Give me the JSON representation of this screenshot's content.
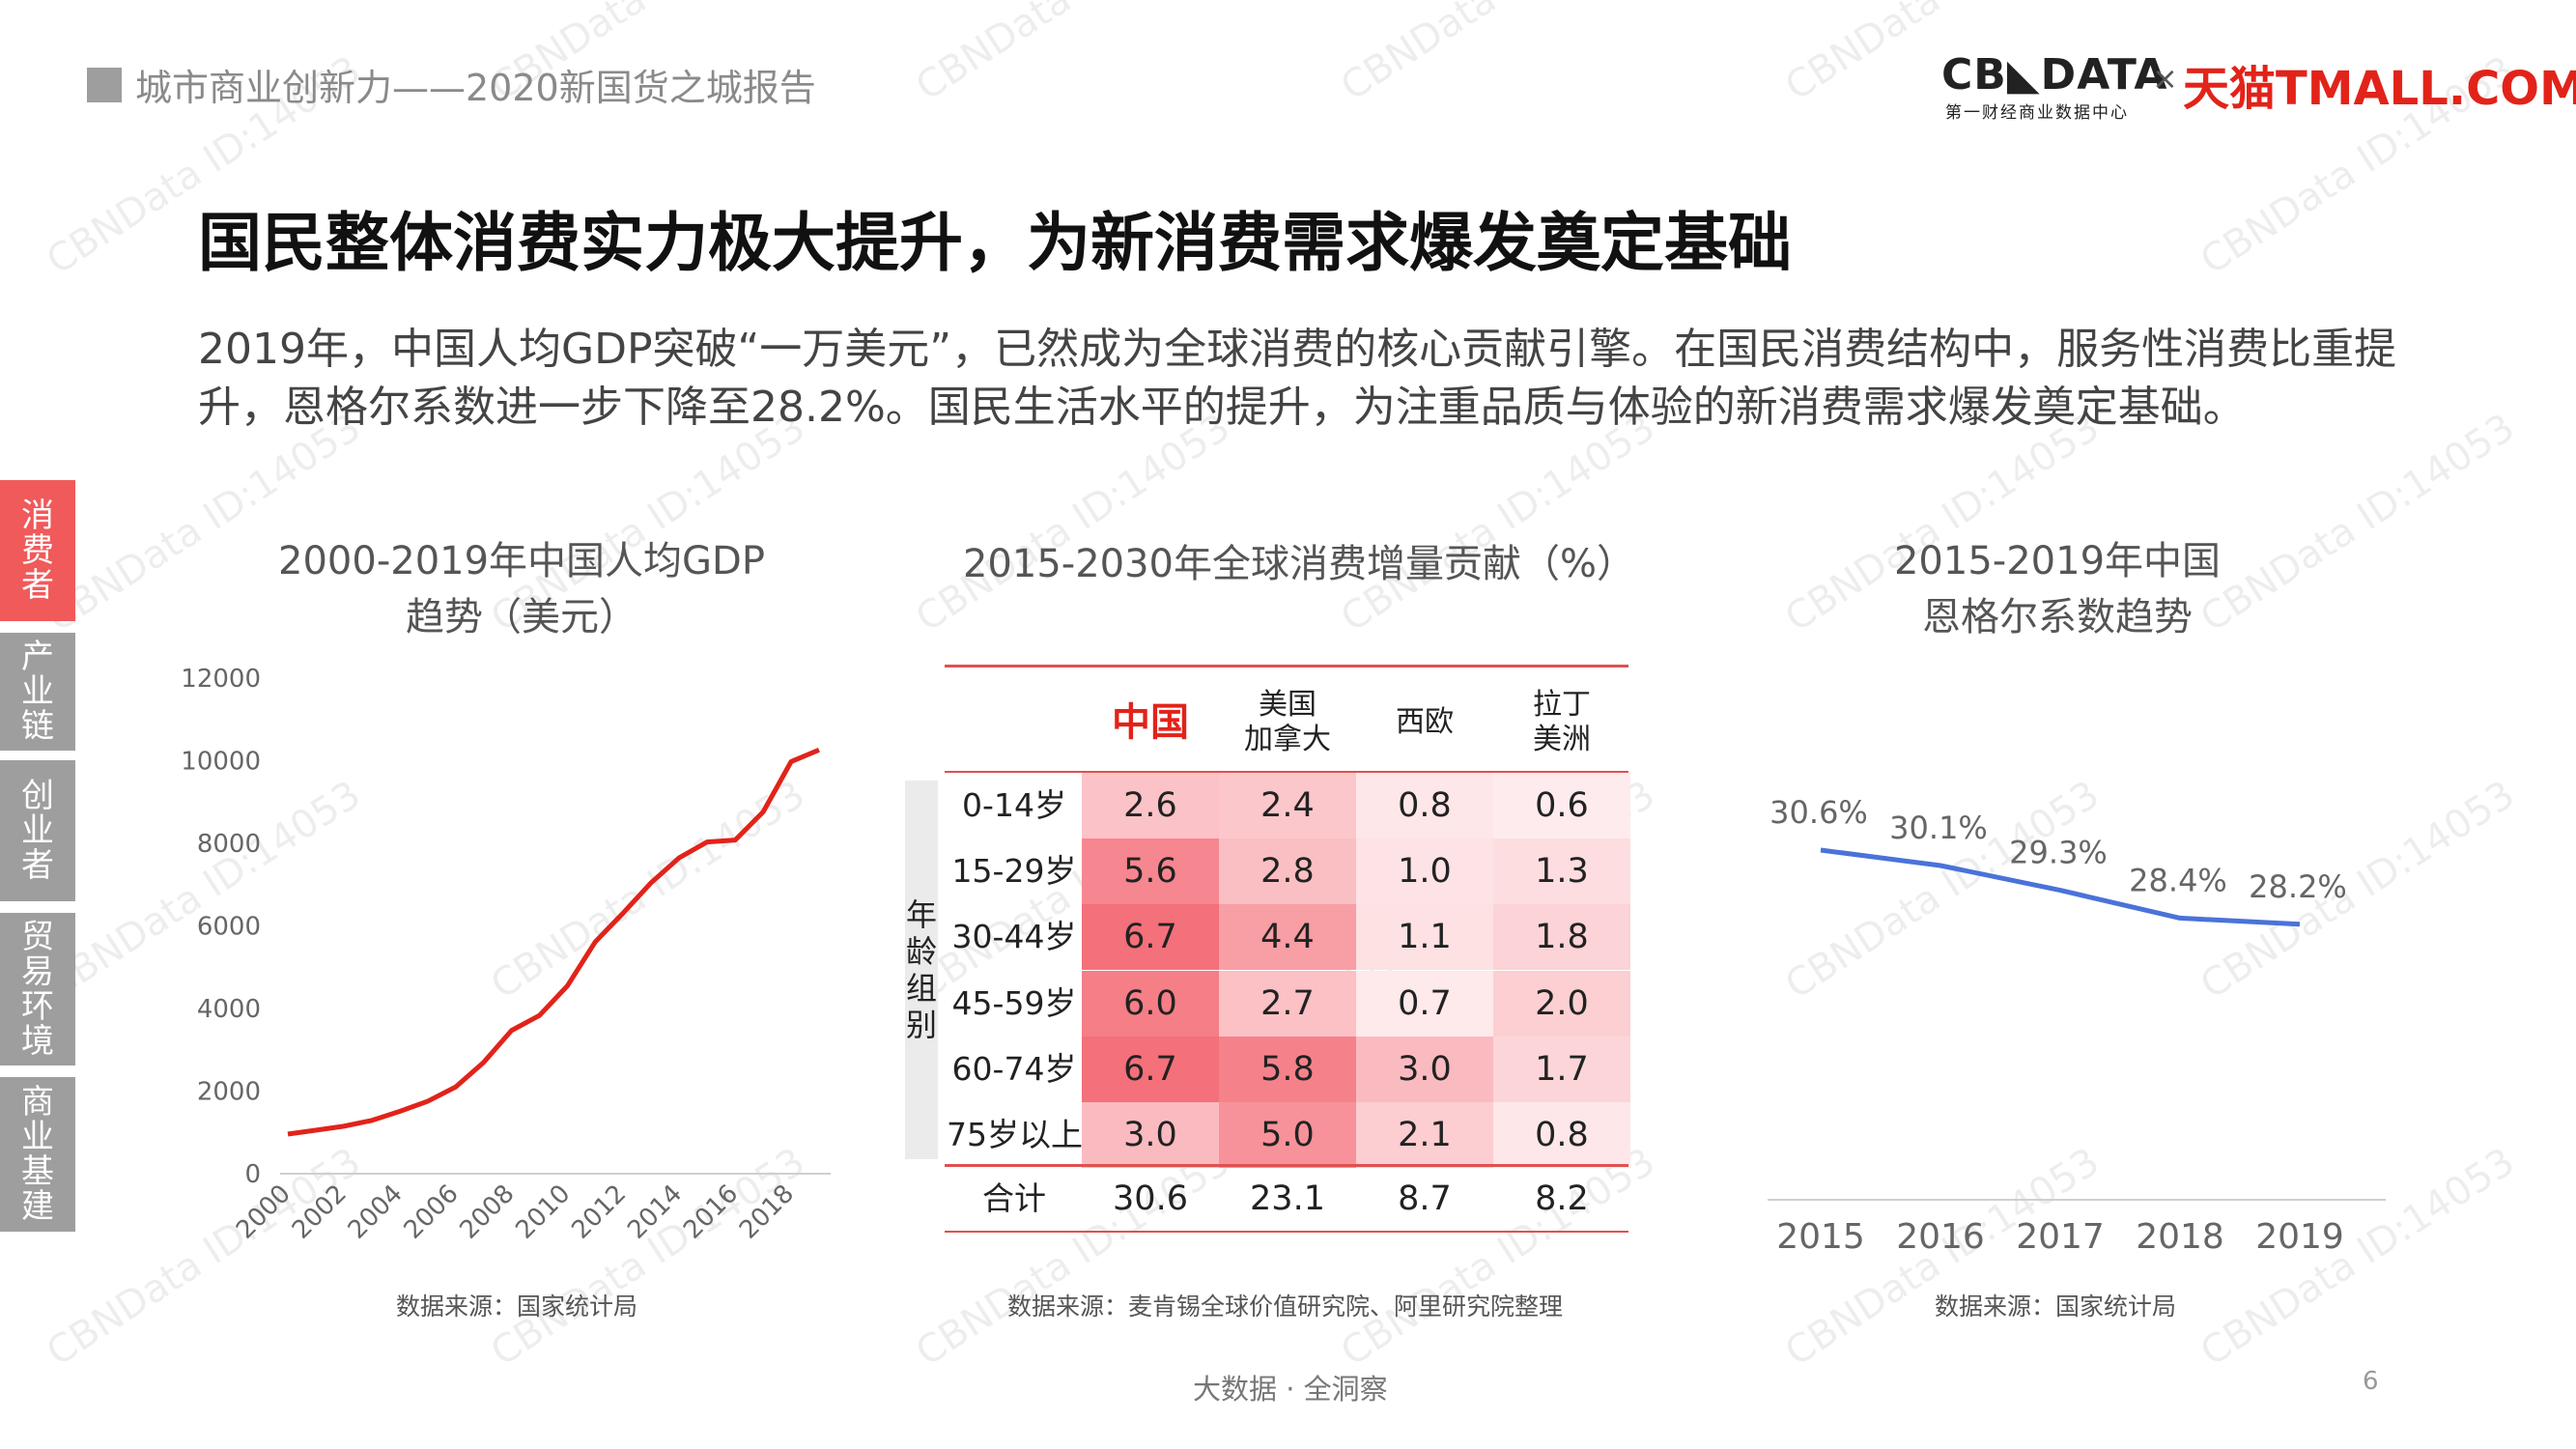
{
  "header": {
    "report_title": "城市商业创新力——2020新国货之城报告",
    "logo_cbn": "CB◣DATA",
    "logo_cbn_sub": "第一财经商业数据中心",
    "logo_x": "×",
    "logo_tmall": "天猫TMALL.COM"
  },
  "main_title": "国民整体消费实力极大提升，为新消费需求爆发奠定基础",
  "intro_text": "2019年，中国人均GDP突破“一万美元”，已然成为全球消费的核心贡献引擎。在国民消费结构中，服务性消费比重提升，恩格尔系数进一步下降至28.2%。国民生活水平的提升，为注重品质与体验的新消费需求爆发奠定基础。",
  "side_nav": [
    {
      "label": "消费者",
      "active": true
    },
    {
      "label": "产业链",
      "active": false
    },
    {
      "label": "创业者",
      "active": false
    },
    {
      "label": "贸易环境",
      "active": false
    },
    {
      "label": "商业基建",
      "active": false
    }
  ],
  "colors": {
    "accent_red": "#e2231a",
    "gdp_line": "#e2231a",
    "engel_line": "#4a72d9",
    "nav_active": "#f05a5a",
    "nav_inactive": "#9e9e9e"
  },
  "chart_data": [
    {
      "type": "line",
      "title_line1": "2000-2019年中国人均GDP",
      "title_line2": "趋势（美元）",
      "x": [
        2000,
        2001,
        2002,
        2003,
        2004,
        2005,
        2006,
        2007,
        2008,
        2009,
        2010,
        2011,
        2012,
        2013,
        2014,
        2015,
        2016,
        2017,
        2018,
        2019
      ],
      "x_tick_labels": [
        "2000",
        "2002",
        "2004",
        "2006",
        "2008",
        "2010",
        "2012",
        "2014",
        "2016",
        "2018"
      ],
      "series": [
        {
          "values": [
            959,
            1053,
            1149,
            1289,
            1509,
            1753,
            2099,
            2694,
            3468,
            3832,
            4550,
            5618,
            6317,
            7051,
            7651,
            8033,
            8079,
            8760,
            9977,
            10262
          ]
        }
      ],
      "y_ticks": [
        "0",
        "2000",
        "4000",
        "6000",
        "8000",
        "10000",
        "12000"
      ],
      "ylim": [
        0,
        12000
      ],
      "grid": false,
      "source": "数据来源：国家统计局"
    },
    {
      "type": "table",
      "title": "2015-2030年全球消费增量贡献（%）",
      "columns": [
        "中国",
        "美国\n加拿大",
        "西欧",
        "拉丁\n美洲"
      ],
      "group_label": "年龄组别",
      "rows": [
        {
          "label": "0-14岁",
          "values": [
            "2.6",
            "2.4",
            "0.8",
            "0.6"
          ]
        },
        {
          "label": "15-29岁",
          "values": [
            "5.6",
            "2.8",
            "1.0",
            "1.3"
          ]
        },
        {
          "label": "30-44岁",
          "values": [
            "6.7",
            "4.4",
            "1.1",
            "1.8"
          ]
        },
        {
          "label": "45-59岁",
          "values": [
            "6.0",
            "2.7",
            "0.7",
            "2.0"
          ]
        },
        {
          "label": "60-74岁",
          "values": [
            "6.7",
            "5.8",
            "3.0",
            "1.7"
          ]
        },
        {
          "label": "75岁以上",
          "values": [
            "3.0",
            "5.0",
            "2.1",
            "0.8"
          ]
        }
      ],
      "total": {
        "label": "合计",
        "values": [
          "30.6",
          "23.1",
          "8.7",
          "8.2"
        ]
      },
      "source": "数据来源：麦肯锡全球价值研究院、阿里研究院整理"
    },
    {
      "type": "line",
      "title_line1": "2015-2019年中国",
      "title_line2": "恩格尔系数趋势",
      "x": [
        "2015",
        "2016",
        "2017",
        "2018",
        "2019"
      ],
      "series": [
        {
          "values": [
            30.6,
            30.1,
            29.3,
            28.4,
            28.2
          ],
          "labels": [
            "30.6%",
            "30.1%",
            "29.3%",
            "28.4%",
            "28.2%"
          ]
        }
      ],
      "ylim": [
        24,
        34
      ],
      "grid": false,
      "source": "数据来源：国家统计局"
    }
  ],
  "footer": {
    "tagline": "大数据 · 全洞察",
    "page_number": "6"
  },
  "watermark": "CBNData ID:14053"
}
